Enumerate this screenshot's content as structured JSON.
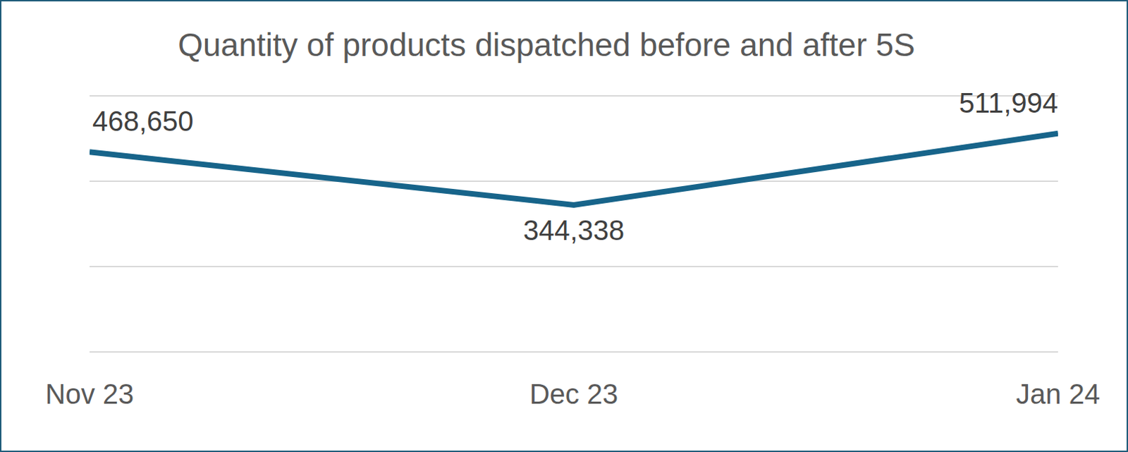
{
  "chart_data": {
    "type": "line",
    "title": "Quantity of products dispatched before and after 5S",
    "categories": [
      "Nov 23",
      "Dec 23",
      "Jan 24"
    ],
    "values": [
      468650,
      344338,
      511994
    ],
    "value_labels": [
      "468,650",
      "344,338",
      "511,994"
    ],
    "color": "#17648a",
    "ylim": [
      0,
      600000
    ],
    "yticks": [
      0,
      200000,
      400000,
      600000
    ],
    "grid": true,
    "data_labels": true,
    "tick_labels": "x"
  }
}
